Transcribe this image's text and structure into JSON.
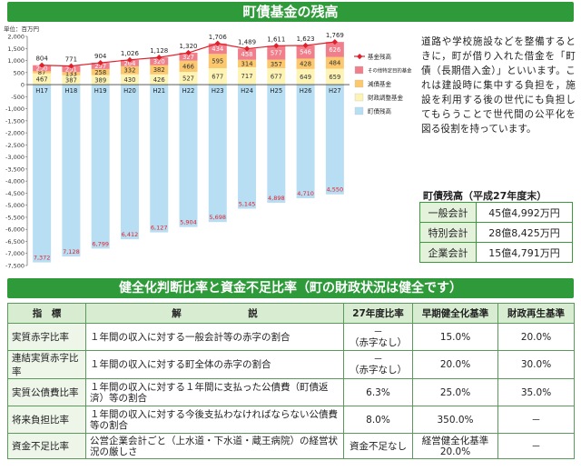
{
  "header": {
    "title": "町債基金の残高"
  },
  "chart_data": {
    "type": "bar",
    "unit_label": "単位：百万円",
    "categories": [
      "H17",
      "H18",
      "H19",
      "H20",
      "H21",
      "H22",
      "H23",
      "H24",
      "H25",
      "H26",
      "H27"
    ],
    "yticks": [
      2000,
      1500,
      1000,
      500,
      0,
      -500,
      -1000,
      -1500,
      -2000,
      -2500,
      -3000,
      -3500,
      -4000,
      -4500,
      -5000,
      -5500,
      -6000,
      -6500,
      -7000,
      -7500
    ],
    "ytick_labels": [
      "2,000",
      "1,500",
      "1,000",
      "500",
      "0",
      "-500",
      "-1,000",
      "-1,500",
      "-2,000",
      "-2,500",
      "-3,000",
      "-3,500",
      "-4,000",
      "-4,500",
      "-5,000",
      "-5,500",
      "-6,000",
      "-6,500",
      "-7,000",
      "-7,500"
    ],
    "ylim": [
      -7500,
      2000
    ],
    "series": [
      {
        "name": "町債残高",
        "color": "#b8def3",
        "values": [
          -7372,
          -7128,
          -6799,
          -6412,
          -6127,
          -5904,
          -5698,
          -5145,
          -4898,
          -4710,
          -4550
        ],
        "labels": [
          "7,372",
          "7,128",
          "6,799",
          "6,412",
          "6,127",
          "5,904",
          "5,698",
          "5,145",
          "4,898",
          "4,710",
          "4,550"
        ]
      },
      {
        "name": "財政調整基金",
        "color": "#fcf3b5",
        "values": [
          467,
          387,
          389,
          430,
          426,
          527,
          677,
          717,
          677,
          649,
          659
        ],
        "labels": [
          "467",
          "387",
          "389",
          "430",
          "426",
          "527",
          "677",
          "717",
          "677",
          "649",
          "659"
        ]
      },
      {
        "name": "減債基金",
        "color": "#fbc86e",
        "values": [
          87,
          133,
          258,
          332,
          382,
          466,
          595,
          314,
          357,
          428,
          484
        ],
        "labels": [
          "87",
          "133",
          "258",
          "332",
          "382",
          "466",
          "595",
          "314",
          "357",
          "428",
          "484"
        ]
      },
      {
        "name": "その他特定目的基金",
        "color": "#f07f8b",
        "values": [
          250,
          251,
          257,
          264,
          320,
          327,
          434,
          458,
          577,
          546,
          626
        ],
        "labels": [
          "250",
          "251",
          "257",
          "264",
          "320",
          "327",
          "434",
          "458",
          "577",
          "546",
          "626"
        ]
      }
    ],
    "line": {
      "name": "基金残高",
      "color": "#e0202a",
      "values": [
        804,
        771,
        904,
        1026,
        1128,
        1320,
        1706,
        1489,
        1611,
        1623,
        1769
      ],
      "labels": [
        "804",
        "771",
        "904",
        "1,026",
        "1,128",
        "1,320",
        "1,706",
        "1,489",
        "1,611",
        "1,623",
        "1,769"
      ]
    },
    "legend_placement": "right",
    "legend": [
      "基金残高",
      "その他特定目的基金",
      "減債基金",
      "財政調整基金",
      "町債残高"
    ]
  },
  "description": "道路や学校施設などを整備するときに，町が借り入れた借金を「町債（長期借入金）」といいます。これは建設時に集中する負担を，施設を利用する後の世代にも負担してもらうことで世代間の公平化を図る役割を持っています。",
  "balance": {
    "title": "町債残高（平成27年度末）",
    "rows": [
      {
        "label": "一般会計",
        "value": "45億4,992万円"
      },
      {
        "label": "特別会計",
        "value": "28億8,425万円"
      },
      {
        "label": "企業会計",
        "value": "15億4,791万円"
      }
    ]
  },
  "ratios": {
    "title": "健全化判断比率と資金不足比率（町の財政状況は健全です）",
    "headers": {
      "indicator": "指　標",
      "explanation": "解　　　　　　　説",
      "h27": "27年度比率",
      "early": "早期健全化基準",
      "rebuild": "財政再生基準"
    },
    "rows": [
      {
        "name": "実質赤字比率",
        "desc": "１年間の収入に対する一般会計等の赤字の割合",
        "h27a": "－",
        "h27b": "（赤字なし）",
        "early": "15.0%",
        "rebuild": "20.0%"
      },
      {
        "name": "連結実質赤字比率",
        "desc": "１年間の収入に対する町全体の赤字の割合",
        "h27a": "－",
        "h27b": "（赤字なし）",
        "early": "20.0%",
        "rebuild": "30.0%"
      },
      {
        "name": "実質公債費比率",
        "desc": "１年間の収入に対する１年間に支払った公債費（町債返済）等の割合",
        "h27a": "6.3%",
        "h27b": "",
        "early": "25.0%",
        "rebuild": "35.0%"
      },
      {
        "name": "将来負担比率",
        "desc": "１年間の収入に対する今後支払わなければならない公債費等の割合",
        "h27a": "8.0%",
        "h27b": "",
        "early": "350.0%",
        "rebuild": "－"
      },
      {
        "name": "資金不足比率",
        "desc": "公営企業会計ごと（上水道・下水道・蔵王病院）の経営状況の厳しさ",
        "h27a": "資金不足なし",
        "h27b": "",
        "early": "経営健全化基準",
        "early2": "20.0%",
        "rebuild": "－"
      }
    ]
  }
}
